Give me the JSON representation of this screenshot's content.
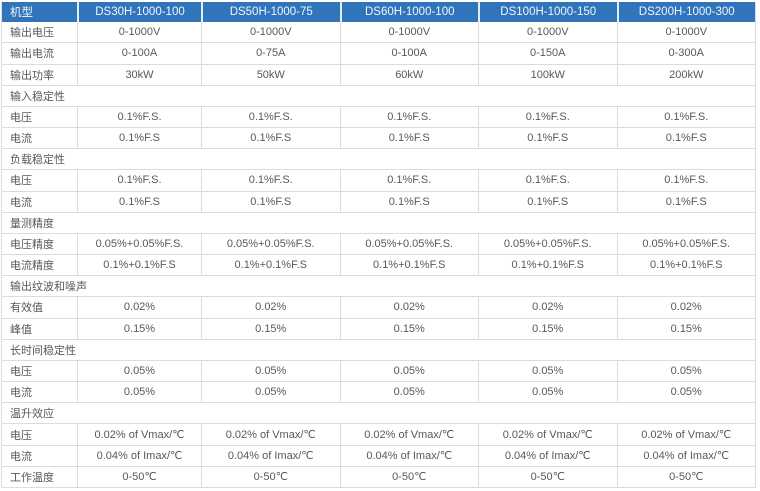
{
  "table": {
    "header": {
      "label": "机型",
      "models": [
        "DS30H-1000-100",
        "DS50H-1000-75",
        "DS60H-1000-100",
        "DS100H-1000-150",
        "DS200H-1000-300"
      ]
    },
    "rows": [
      {
        "type": "data",
        "label": "输出电压",
        "values": [
          "0-1000V",
          "0-1000V",
          "0-1000V",
          "0-1000V",
          "0-1000V"
        ]
      },
      {
        "type": "data",
        "label": "输出电流",
        "values": [
          "0-100A",
          "0-75A",
          "0-100A",
          "0-150A",
          "0-300A"
        ]
      },
      {
        "type": "data",
        "label": "输出功率",
        "values": [
          "30kW",
          "50kW",
          "60kW",
          "100kW",
          "200kW"
        ]
      },
      {
        "type": "section",
        "label": "输入稳定性"
      },
      {
        "type": "data",
        "label": "电压",
        "values": [
          "0.1%F.S.",
          "0.1%F.S.",
          "0.1%F.S.",
          "0.1%F.S.",
          "0.1%F.S."
        ]
      },
      {
        "type": "data",
        "label": "电流",
        "values": [
          "0.1%F.S",
          "0.1%F.S",
          "0.1%F.S",
          "0.1%F.S",
          "0.1%F.S"
        ]
      },
      {
        "type": "section",
        "label": "负载稳定性"
      },
      {
        "type": "data",
        "label": "电压",
        "values": [
          "0.1%F.S.",
          "0.1%F.S.",
          "0.1%F.S.",
          "0.1%F.S.",
          "0.1%F.S."
        ]
      },
      {
        "type": "data",
        "label": "电流",
        "values": [
          "0.1%F.S",
          "0.1%F.S",
          "0.1%F.S",
          "0.1%F.S",
          "0.1%F.S"
        ]
      },
      {
        "type": "section",
        "label": "量测精度"
      },
      {
        "type": "data",
        "label": "电压精度",
        "values": [
          "0.05%+0.05%F.S.",
          "0.05%+0.05%F.S.",
          "0.05%+0.05%F.S.",
          "0.05%+0.05%F.S.",
          "0.05%+0.05%F.S."
        ]
      },
      {
        "type": "data",
        "label": "电流精度",
        "values": [
          "0.1%+0.1%F.S",
          "0.1%+0.1%F.S",
          "0.1%+0.1%F.S",
          "0.1%+0.1%F.S",
          "0.1%+0.1%F.S"
        ]
      },
      {
        "type": "section",
        "label": "输出纹波和噪声"
      },
      {
        "type": "data",
        "label": "有效值",
        "values": [
          "0.02%",
          "0.02%",
          "0.02%",
          "0.02%",
          "0.02%"
        ]
      },
      {
        "type": "data",
        "label": "峰值",
        "values": [
          "0.15%",
          "0.15%",
          "0.15%",
          "0.15%",
          "0.15%"
        ]
      },
      {
        "type": "section",
        "label": "长时间稳定性"
      },
      {
        "type": "data",
        "label": "电压",
        "values": [
          "0.05%",
          "0.05%",
          "0.05%",
          "0.05%",
          "0.05%"
        ]
      },
      {
        "type": "data",
        "label": "电流",
        "values": [
          "0.05%",
          "0.05%",
          "0.05%",
          "0.05%",
          "0.05%"
        ]
      },
      {
        "type": "section",
        "label": "温升效应"
      },
      {
        "type": "data",
        "label": "电压",
        "values": [
          "0.02% of Vmax/℃",
          "0.02% of Vmax/℃",
          "0.02% of Vmax/℃",
          "0.02% of Vmax/℃",
          "0.02% of Vmax/℃"
        ]
      },
      {
        "type": "data",
        "label": "电流",
        "values": [
          "0.04% of Imax/℃",
          "0.04% of Imax/℃",
          "0.04% of Imax/℃",
          "0.04% of Imax/℃",
          "0.04% of Imax/℃"
        ]
      },
      {
        "type": "data",
        "label": "工作温度",
        "values": [
          "0-50℃",
          "0-50℃",
          "0-50℃",
          "0-50℃",
          "0-50℃"
        ]
      }
    ],
    "colors": {
      "header_bg": "#3075bc",
      "header_text": "#f2f6fa",
      "body_text": "#55595d",
      "border": "#d9dce0"
    }
  }
}
